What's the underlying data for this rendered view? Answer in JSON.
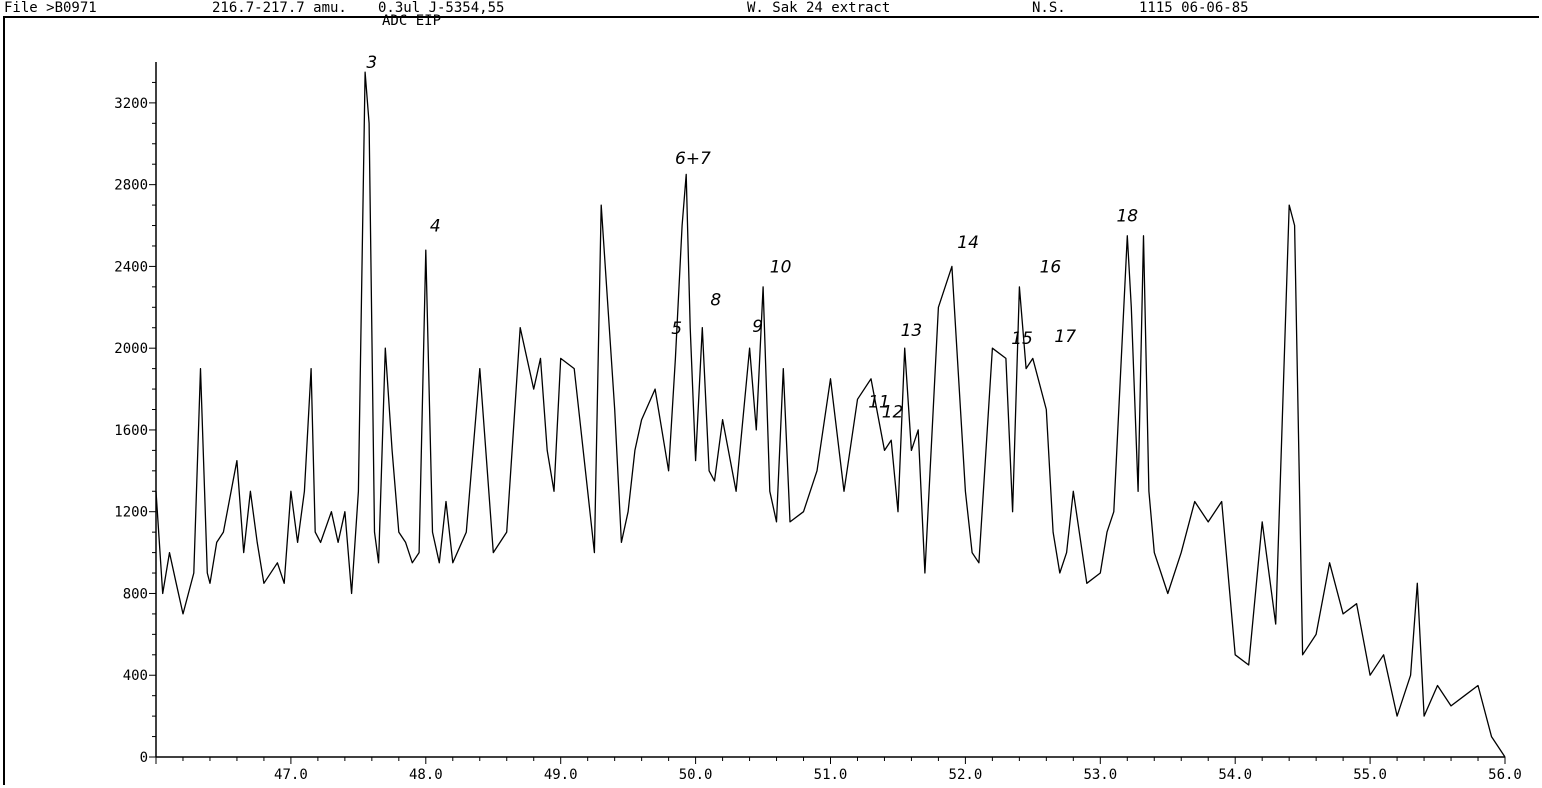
{
  "header": {
    "file": "File >B0971",
    "mass_range": "216.7-217.7 amu.",
    "injection": "0.3ul J-5354,55",
    "sample": "W. Sak 24 extract",
    "operator": "N.S.",
    "run_datetime": "1115 06-06-85",
    "mode": "ADC EIP"
  },
  "chart_data": {
    "type": "line",
    "title": "",
    "xlabel": "",
    "ylabel": "",
    "xlim": [
      46.0,
      56.0
    ],
    "ylim": [
      0,
      3400
    ],
    "x_ticks": [
      "47.0",
      "48.0",
      "49.0",
      "50.0",
      "51.0",
      "52.0",
      "53.0",
      "54.0",
      "55.0",
      "56.0"
    ],
    "y_ticks": [
      "0",
      "400",
      "800",
      "1200",
      "1600",
      "2000",
      "2400",
      "2800",
      "3200"
    ],
    "grid": false,
    "series": [
      {
        "x": [
          46.0,
          46.05,
          46.1,
          46.15,
          46.2,
          46.28,
          46.33,
          46.38,
          46.4,
          46.45,
          46.5,
          46.6,
          46.65,
          46.7,
          46.75,
          46.8,
          46.9,
          46.95,
          47.0,
          47.05,
          47.1,
          47.15,
          47.18,
          47.22,
          47.3,
          47.35,
          47.4,
          47.45,
          47.5,
          47.55,
          47.58,
          47.62,
          47.65,
          47.7,
          47.75,
          47.8,
          47.85,
          47.9,
          47.95,
          48.0,
          48.05,
          48.1,
          48.15,
          48.2,
          48.3,
          48.4,
          48.5,
          48.6,
          48.7,
          48.8,
          48.85,
          48.9,
          48.95,
          49.0,
          49.1,
          49.2,
          49.25,
          49.3,
          49.4,
          49.45,
          49.5,
          49.55,
          49.6,
          49.7,
          49.8,
          49.85,
          49.9,
          49.93,
          49.96,
          50.0,
          50.05,
          50.1,
          50.14,
          50.2,
          50.3,
          50.4,
          50.45,
          50.5,
          50.55,
          50.6,
          50.65,
          50.7,
          50.8,
          50.9,
          51.0,
          51.1,
          51.2,
          51.3,
          51.4,
          51.45,
          51.5,
          51.55,
          51.6,
          51.65,
          51.7,
          51.8,
          51.9,
          52.0,
          52.05,
          52.1,
          52.2,
          52.3,
          52.35,
          52.4,
          52.45,
          52.5,
          52.6,
          52.65,
          52.7,
          52.75,
          52.8,
          52.9,
          53.0,
          53.05,
          53.1,
          53.2,
          53.23,
          53.28,
          53.32,
          53.36,
          53.4,
          53.5,
          53.6,
          53.7,
          53.8,
          53.9,
          54.0,
          54.1,
          54.2,
          54.3,
          54.4,
          54.44,
          54.5,
          54.6,
          54.7,
          54.8,
          54.9,
          55.0,
          55.1,
          55.2,
          55.3,
          55.35,
          55.4,
          55.5,
          55.6,
          55.7,
          55.8,
          55.9,
          56.0
        ],
        "values": [
          1300,
          800,
          1000,
          850,
          700,
          900,
          1900,
          900,
          850,
          1050,
          1100,
          1450,
          1000,
          1300,
          1050,
          850,
          950,
          850,
          1300,
          1050,
          1300,
          1900,
          1100,
          1050,
          1200,
          1050,
          1200,
          800,
          1300,
          3350,
          3100,
          1100,
          950,
          2000,
          1500,
          1100,
          1050,
          950,
          1000,
          2480,
          1100,
          950,
          1250,
          950,
          1100,
          1900,
          1000,
          1100,
          2100,
          1800,
          1950,
          1500,
          1300,
          1950,
          1900,
          1300,
          1000,
          2700,
          1700,
          1050,
          1200,
          1500,
          1650,
          1800,
          1400,
          1950,
          2600,
          2850,
          2100,
          1450,
          2100,
          1400,
          1350,
          1650,
          1300,
          2000,
          1600,
          2300,
          1300,
          1150,
          1900,
          1150,
          1200,
          1400,
          1850,
          1300,
          1750,
          1850,
          1500,
          1550,
          1200,
          2000,
          1500,
          1600,
          900,
          2200,
          2400,
          1300,
          1000,
          950,
          2000,
          1950,
          1200,
          2300,
          1900,
          1950,
          1700,
          1100,
          900,
          1000,
          1300,
          850,
          900,
          1100,
          1200,
          2550,
          2200,
          1300,
          2550,
          1300,
          1000,
          800,
          1000,
          1250,
          1150,
          1250,
          500,
          450,
          1150,
          650,
          2700,
          2600,
          500,
          600,
          950,
          700,
          750,
          400,
          500,
          200,
          400,
          850,
          200,
          350,
          250,
          300,
          350,
          100,
          0
        ]
      }
    ],
    "annotations": [
      {
        "text": "3",
        "x": 47.6,
        "y": 3370
      },
      {
        "text": "4",
        "x": 48.07,
        "y": 2570
      },
      {
        "text": "5",
        "x": 49.86,
        "y": 2070
      },
      {
        "text": "6+7",
        "x": 49.98,
        "y": 2900
      },
      {
        "text": "8",
        "x": 50.15,
        "y": 2210
      },
      {
        "text": "9",
        "x": 50.46,
        "y": 2080
      },
      {
        "text": "10",
        "x": 50.63,
        "y": 2370
      },
      {
        "text": "11",
        "x": 51.36,
        "y": 1710
      },
      {
        "text": "12",
        "x": 51.46,
        "y": 1660
      },
      {
        "text": "13",
        "x": 51.6,
        "y": 2060
      },
      {
        "text": "14",
        "x": 52.02,
        "y": 2490
      },
      {
        "text": "15",
        "x": 52.42,
        "y": 2020
      },
      {
        "text": "16",
        "x": 52.63,
        "y": 2370
      },
      {
        "text": "17",
        "x": 52.74,
        "y": 2030
      },
      {
        "text": "18",
        "x": 53.2,
        "y": 2620
      }
    ]
  }
}
